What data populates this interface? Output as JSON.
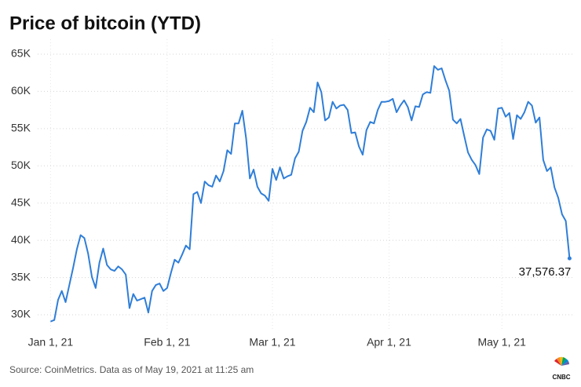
{
  "chart_data": {
    "type": "line",
    "title": "Price of bitcoin (YTD)",
    "source": "Source: CoinMetrics. Data as of May 19, 2021 at 11:25 am",
    "logo": "CNBC",
    "xlim": [
      "2020-12-29",
      "2021-05-21"
    ],
    "xticks": [
      {
        "value": "2021-01-01",
        "label": "Jan 1, 21"
      },
      {
        "value": "2021-02-01",
        "label": "Feb 1, 21"
      },
      {
        "value": "2021-03-01",
        "label": "Mar 1, 21"
      },
      {
        "value": "2021-04-01",
        "label": "Apr 1, 21"
      },
      {
        "value": "2021-05-01",
        "label": "May 1, 21"
      }
    ],
    "ylim": [
      28000,
      67000
    ],
    "yticks": [
      {
        "value": 30000,
        "label": "30K"
      },
      {
        "value": 35000,
        "label": "35K"
      },
      {
        "value": 40000,
        "label": "40K"
      },
      {
        "value": 45000,
        "label": "45K"
      },
      {
        "value": 50000,
        "label": "50K"
      },
      {
        "value": 55000,
        "label": "55K"
      },
      {
        "value": 60000,
        "label": "60K"
      },
      {
        "value": 65000,
        "label": "65K"
      }
    ],
    "grid": true,
    "x": [
      "2021-01-01",
      "2021-01-02",
      "2021-01-03",
      "2021-01-04",
      "2021-01-05",
      "2021-01-06",
      "2021-01-07",
      "2021-01-08",
      "2021-01-09",
      "2021-01-10",
      "2021-01-11",
      "2021-01-12",
      "2021-01-13",
      "2021-01-14",
      "2021-01-15",
      "2021-01-16",
      "2021-01-17",
      "2021-01-18",
      "2021-01-19",
      "2021-01-20",
      "2021-01-21",
      "2021-01-22",
      "2021-01-23",
      "2021-01-24",
      "2021-01-25",
      "2021-01-26",
      "2021-01-27",
      "2021-01-28",
      "2021-01-29",
      "2021-01-30",
      "2021-01-31",
      "2021-02-01",
      "2021-02-02",
      "2021-02-03",
      "2021-02-04",
      "2021-02-05",
      "2021-02-06",
      "2021-02-07",
      "2021-02-08",
      "2021-02-09",
      "2021-02-10",
      "2021-02-11",
      "2021-02-12",
      "2021-02-13",
      "2021-02-14",
      "2021-02-15",
      "2021-02-16",
      "2021-02-17",
      "2021-02-18",
      "2021-02-19",
      "2021-02-20",
      "2021-02-21",
      "2021-02-22",
      "2021-02-23",
      "2021-02-24",
      "2021-02-25",
      "2021-02-26",
      "2021-02-27",
      "2021-02-28",
      "2021-03-01",
      "2021-03-02",
      "2021-03-03",
      "2021-03-04",
      "2021-03-05",
      "2021-03-06",
      "2021-03-07",
      "2021-03-08",
      "2021-03-09",
      "2021-03-10",
      "2021-03-11",
      "2021-03-12",
      "2021-03-13",
      "2021-03-14",
      "2021-03-15",
      "2021-03-16",
      "2021-03-17",
      "2021-03-18",
      "2021-03-19",
      "2021-03-20",
      "2021-03-21",
      "2021-03-22",
      "2021-03-23",
      "2021-03-24",
      "2021-03-25",
      "2021-03-26",
      "2021-03-27",
      "2021-03-28",
      "2021-03-29",
      "2021-03-30",
      "2021-03-31",
      "2021-04-01",
      "2021-04-02",
      "2021-04-03",
      "2021-04-04",
      "2021-04-05",
      "2021-04-06",
      "2021-04-07",
      "2021-04-08",
      "2021-04-09",
      "2021-04-10",
      "2021-04-11",
      "2021-04-12",
      "2021-04-13",
      "2021-04-14",
      "2021-04-15",
      "2021-04-16",
      "2021-04-17",
      "2021-04-18",
      "2021-04-19",
      "2021-04-20",
      "2021-04-21",
      "2021-04-22",
      "2021-04-23",
      "2021-04-24",
      "2021-04-25",
      "2021-04-26",
      "2021-04-27",
      "2021-04-28",
      "2021-04-29",
      "2021-04-30",
      "2021-05-01",
      "2021-05-02",
      "2021-05-03",
      "2021-05-04",
      "2021-05-05",
      "2021-05-06",
      "2021-05-07",
      "2021-05-08",
      "2021-05-09",
      "2021-05-10",
      "2021-05-11",
      "2021-05-12",
      "2021-05-13",
      "2021-05-14",
      "2021-05-15",
      "2021-05-16",
      "2021-05-17",
      "2021-05-18",
      "2021-05-19"
    ],
    "series": [
      {
        "name": "Price of bitcoin",
        "color": "#2f7ed8",
        "values": [
          29100,
          29300,
          32000,
          33200,
          31700,
          34000,
          36300,
          38800,
          40700,
          40300,
          38200,
          35100,
          33600,
          37000,
          38900,
          36700,
          36100,
          35900,
          36500,
          36100,
          35400,
          30900,
          32800,
          31900,
          32100,
          32300,
          30300,
          33200,
          34000,
          34200,
          33200,
          33600,
          35600,
          37400,
          37000,
          38100,
          39300,
          38800,
          46200,
          46500,
          45000,
          47900,
          47400,
          47200,
          48700,
          47900,
          49300,
          52100,
          51600,
          55700,
          55700,
          57400,
          53700,
          48300,
          49500,
          47200,
          46300,
          46000,
          45300,
          49600,
          48100,
          49800,
          48300,
          48600,
          48800,
          51000,
          51900,
          54700,
          55900,
          57800,
          57200,
          61200,
          59900,
          56100,
          56500,
          58600,
          57700,
          58100,
          58200,
          57500,
          54400,
          54500,
          52600,
          51500,
          54800,
          55900,
          55700,
          57500,
          58600,
          58600,
          58700,
          59000,
          57200,
          58100,
          58800,
          57900,
          56100,
          58000,
          57900,
          59600,
          59900,
          59800,
          63400,
          62900,
          63100,
          61500,
          60100,
          56200,
          55700,
          56300,
          54000,
          51800,
          50800,
          50100,
          48900,
          53800,
          54900,
          54700,
          53500,
          57700,
          57800,
          56600,
          57100,
          53600,
          56800,
          56300,
          57200,
          58600,
          58100,
          55800,
          56500,
          50800,
          49300,
          49800,
          47100,
          45700,
          43500,
          42600,
          37576.37
        ],
        "value_labels": [
          null,
          null,
          null,
          null,
          null,
          null,
          null,
          null,
          null,
          null,
          null,
          null,
          null,
          null,
          null,
          null,
          null,
          null,
          null,
          null,
          null,
          null,
          null,
          null,
          null,
          null,
          null,
          null,
          null,
          null,
          null,
          null,
          null,
          null,
          null,
          null,
          null,
          null,
          null,
          null,
          null,
          null,
          null,
          null,
          null,
          null,
          null,
          null,
          null,
          null,
          null,
          null,
          null,
          null,
          null,
          null,
          null,
          null,
          null,
          null,
          null,
          null,
          null,
          null,
          null,
          null,
          null,
          null,
          null,
          null,
          null,
          null,
          null,
          null,
          null,
          null,
          null,
          null,
          null,
          null,
          null,
          null,
          null,
          null,
          null,
          null,
          null,
          null,
          null,
          null,
          null,
          null,
          null,
          null,
          null,
          null,
          null,
          null,
          null,
          null,
          null,
          null,
          null,
          null,
          null,
          null,
          null,
          null,
          null,
          null,
          null,
          null,
          null,
          null,
          null,
          null,
          null,
          null,
          null,
          null,
          null,
          null,
          null,
          null,
          null,
          null,
          null,
          null,
          null,
          null,
          null,
          null,
          null,
          null,
          null,
          null,
          null,
          null,
          "37,576.37"
        ]
      }
    ]
  }
}
